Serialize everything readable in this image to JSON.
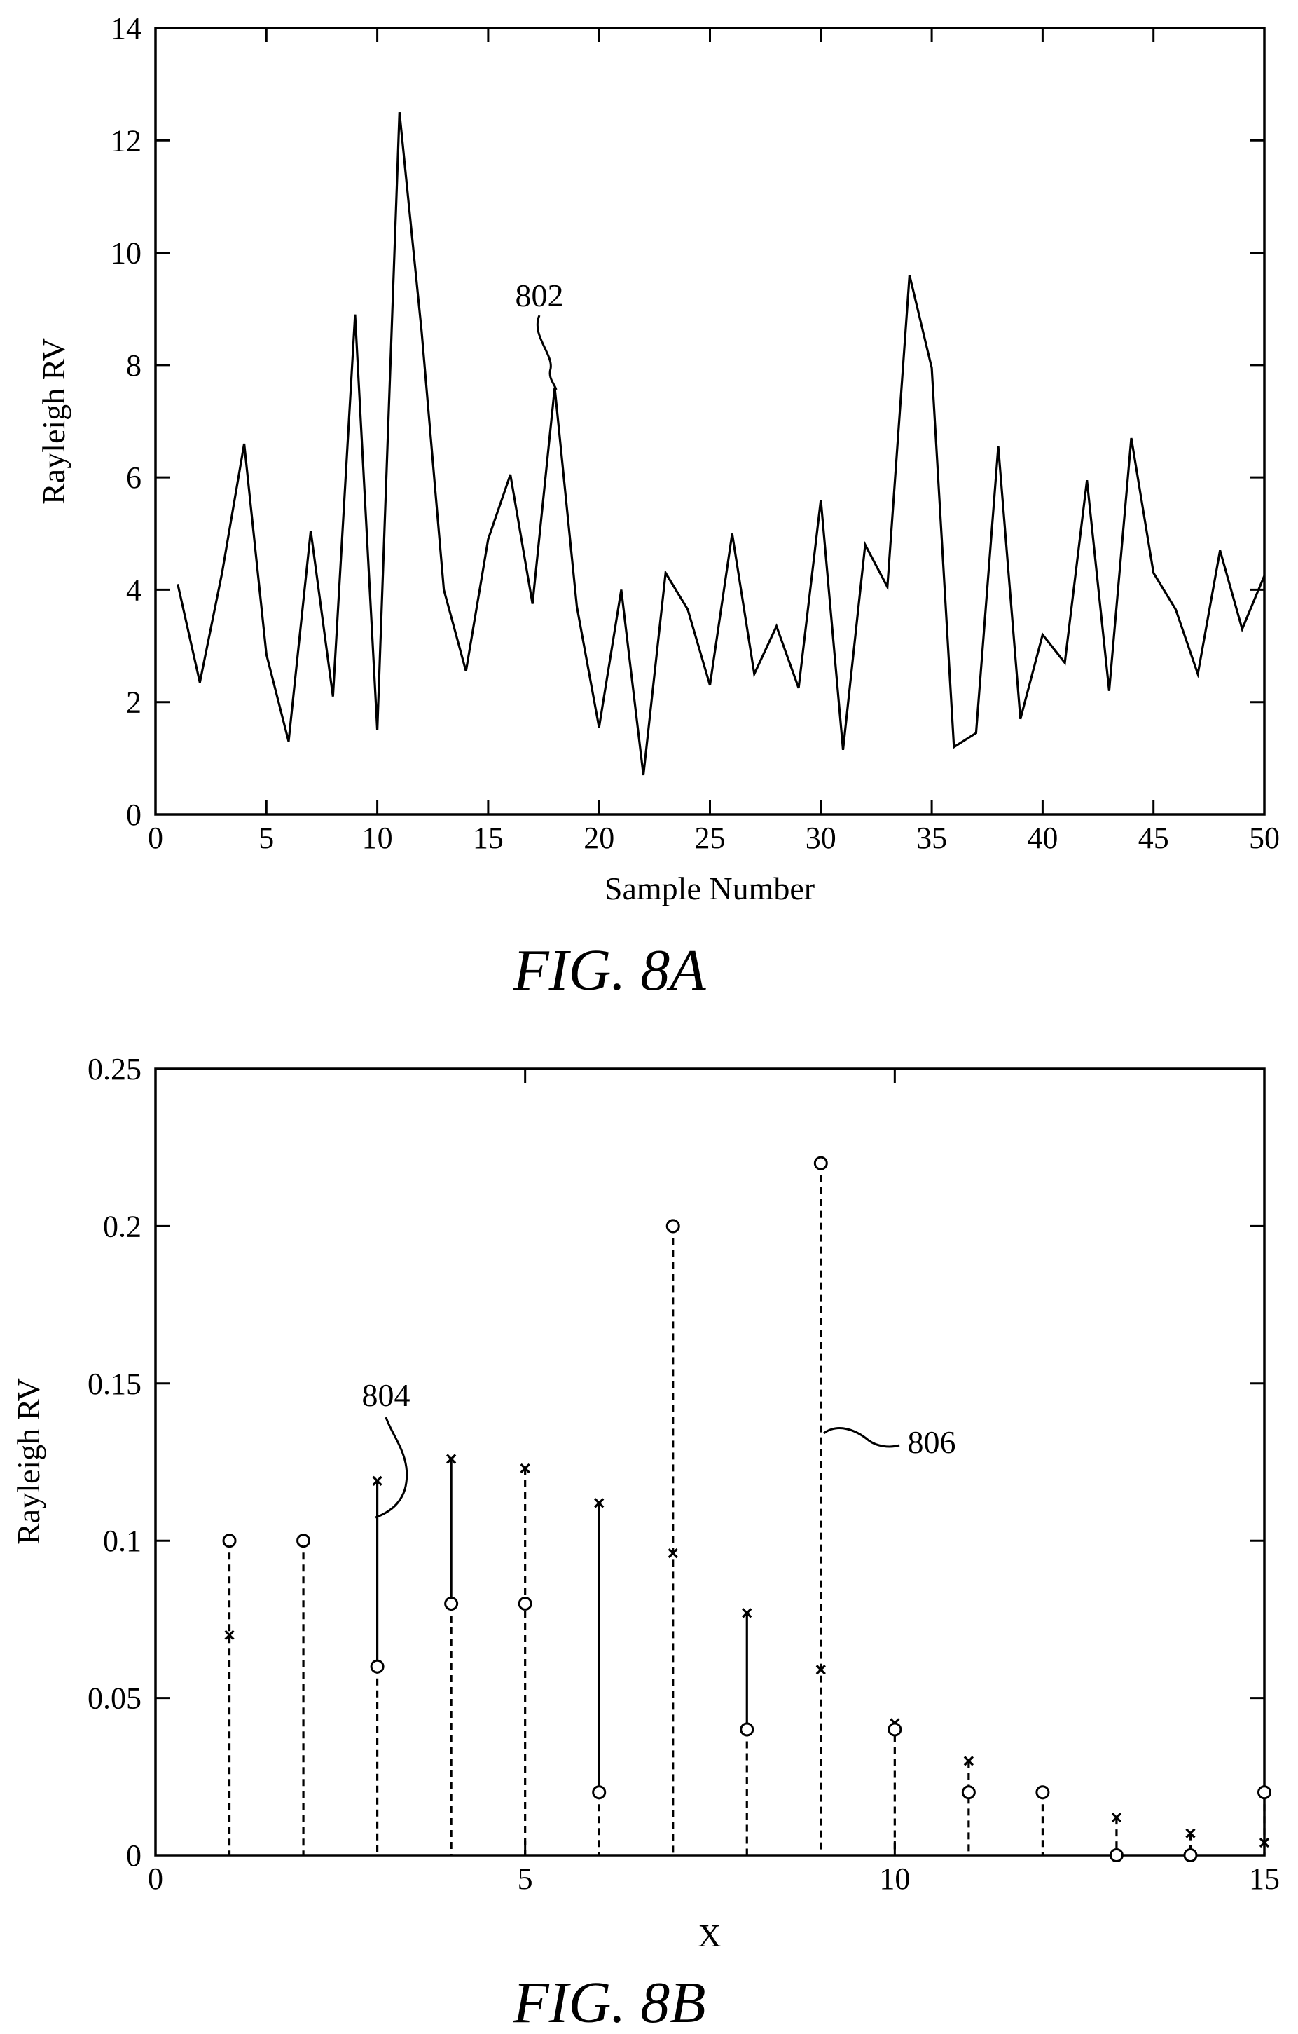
{
  "figure_a": {
    "caption": "FIG. 8A",
    "reference_label": "802"
  },
  "figure_b": {
    "caption": "FIG. 8B",
    "reference_label_1": "804",
    "reference_label_2": "806"
  },
  "chart_data": [
    {
      "type": "line",
      "title": "",
      "xlabel": "Sample Number",
      "ylabel": "Rayleigh RV",
      "xlim": [
        0,
        50
      ],
      "ylim": [
        0,
        14
      ],
      "xticks": [
        0,
        5,
        10,
        15,
        20,
        25,
        30,
        35,
        40,
        45,
        50
      ],
      "yticks": [
        0,
        2,
        4,
        6,
        8,
        10,
        12,
        14
      ],
      "grid": false,
      "series": [
        {
          "x": [
            1,
            2,
            3,
            4,
            5,
            6,
            7,
            8,
            9,
            10,
            11,
            12,
            13,
            14,
            15,
            16,
            17,
            18,
            19,
            20,
            21,
            22,
            23,
            24,
            25,
            26,
            27,
            28,
            29,
            30,
            31,
            32,
            33,
            34,
            35,
            36,
            37,
            38,
            39,
            40,
            41,
            42,
            43,
            44,
            45,
            46,
            47,
            48,
            49,
            50
          ],
          "values": [
            4.1,
            2.35,
            4.3,
            6.6,
            2.85,
            1.3,
            5.05,
            2.1,
            8.9,
            1.5,
            12.5,
            8.6,
            4.0,
            2.55,
            4.9,
            6.05,
            3.75,
            7.6,
            3.7,
            1.55,
            4.0,
            0.7,
            4.3,
            3.65,
            2.3,
            5.0,
            2.5,
            3.35,
            2.25,
            5.6,
            1.15,
            4.8,
            4.05,
            9.6,
            7.95,
            1.2,
            1.45,
            6.55,
            1.7,
            3.2,
            2.7,
            5.95,
            2.2,
            6.7,
            4.3,
            3.65,
            2.5,
            4.7,
            3.3,
            4.25
          ]
        }
      ]
    },
    {
      "type": "scatter",
      "title": "",
      "xlabel": "X",
      "ylabel": "Rayleigh RV",
      "xlim": [
        0,
        15
      ],
      "ylim": [
        0,
        0.25
      ],
      "xticks": [
        0,
        5,
        10,
        15
      ],
      "yticks": [
        0,
        0.05,
        0.1,
        0.15,
        0.2,
        0.25
      ],
      "ytick_labels": [
        "0",
        "0.05",
        "0.1",
        "0.15",
        "0.2",
        "0.25"
      ],
      "grid": false,
      "x": [
        1,
        2,
        3,
        4,
        5,
        6,
        7,
        8,
        9,
        10,
        11,
        12,
        13,
        14,
        15
      ],
      "series": [
        {
          "marker": "circle",
          "values": [
            0.1,
            0.1,
            0.06,
            0.08,
            0.08,
            0.02,
            0.2,
            0.04,
            0.22,
            0.04,
            0.02,
            0.02,
            0.0,
            0.0,
            0.02
          ]
        },
        {
          "marker": "x",
          "values": [
            0.07,
            0.1,
            0.119,
            0.126,
            0.123,
            0.112,
            0.096,
            0.077,
            0.059,
            0.042,
            0.03,
            0.02,
            0.012,
            0.007,
            0.004
          ]
        }
      ],
      "stem_styles": [
        "dashed",
        "dashed",
        "solid",
        "solid",
        "dashed",
        "solid",
        "dashed",
        "solid",
        "dashed",
        "dashed",
        "dashed",
        "dashed",
        "dashed",
        "dashed",
        "dashed"
      ]
    }
  ]
}
